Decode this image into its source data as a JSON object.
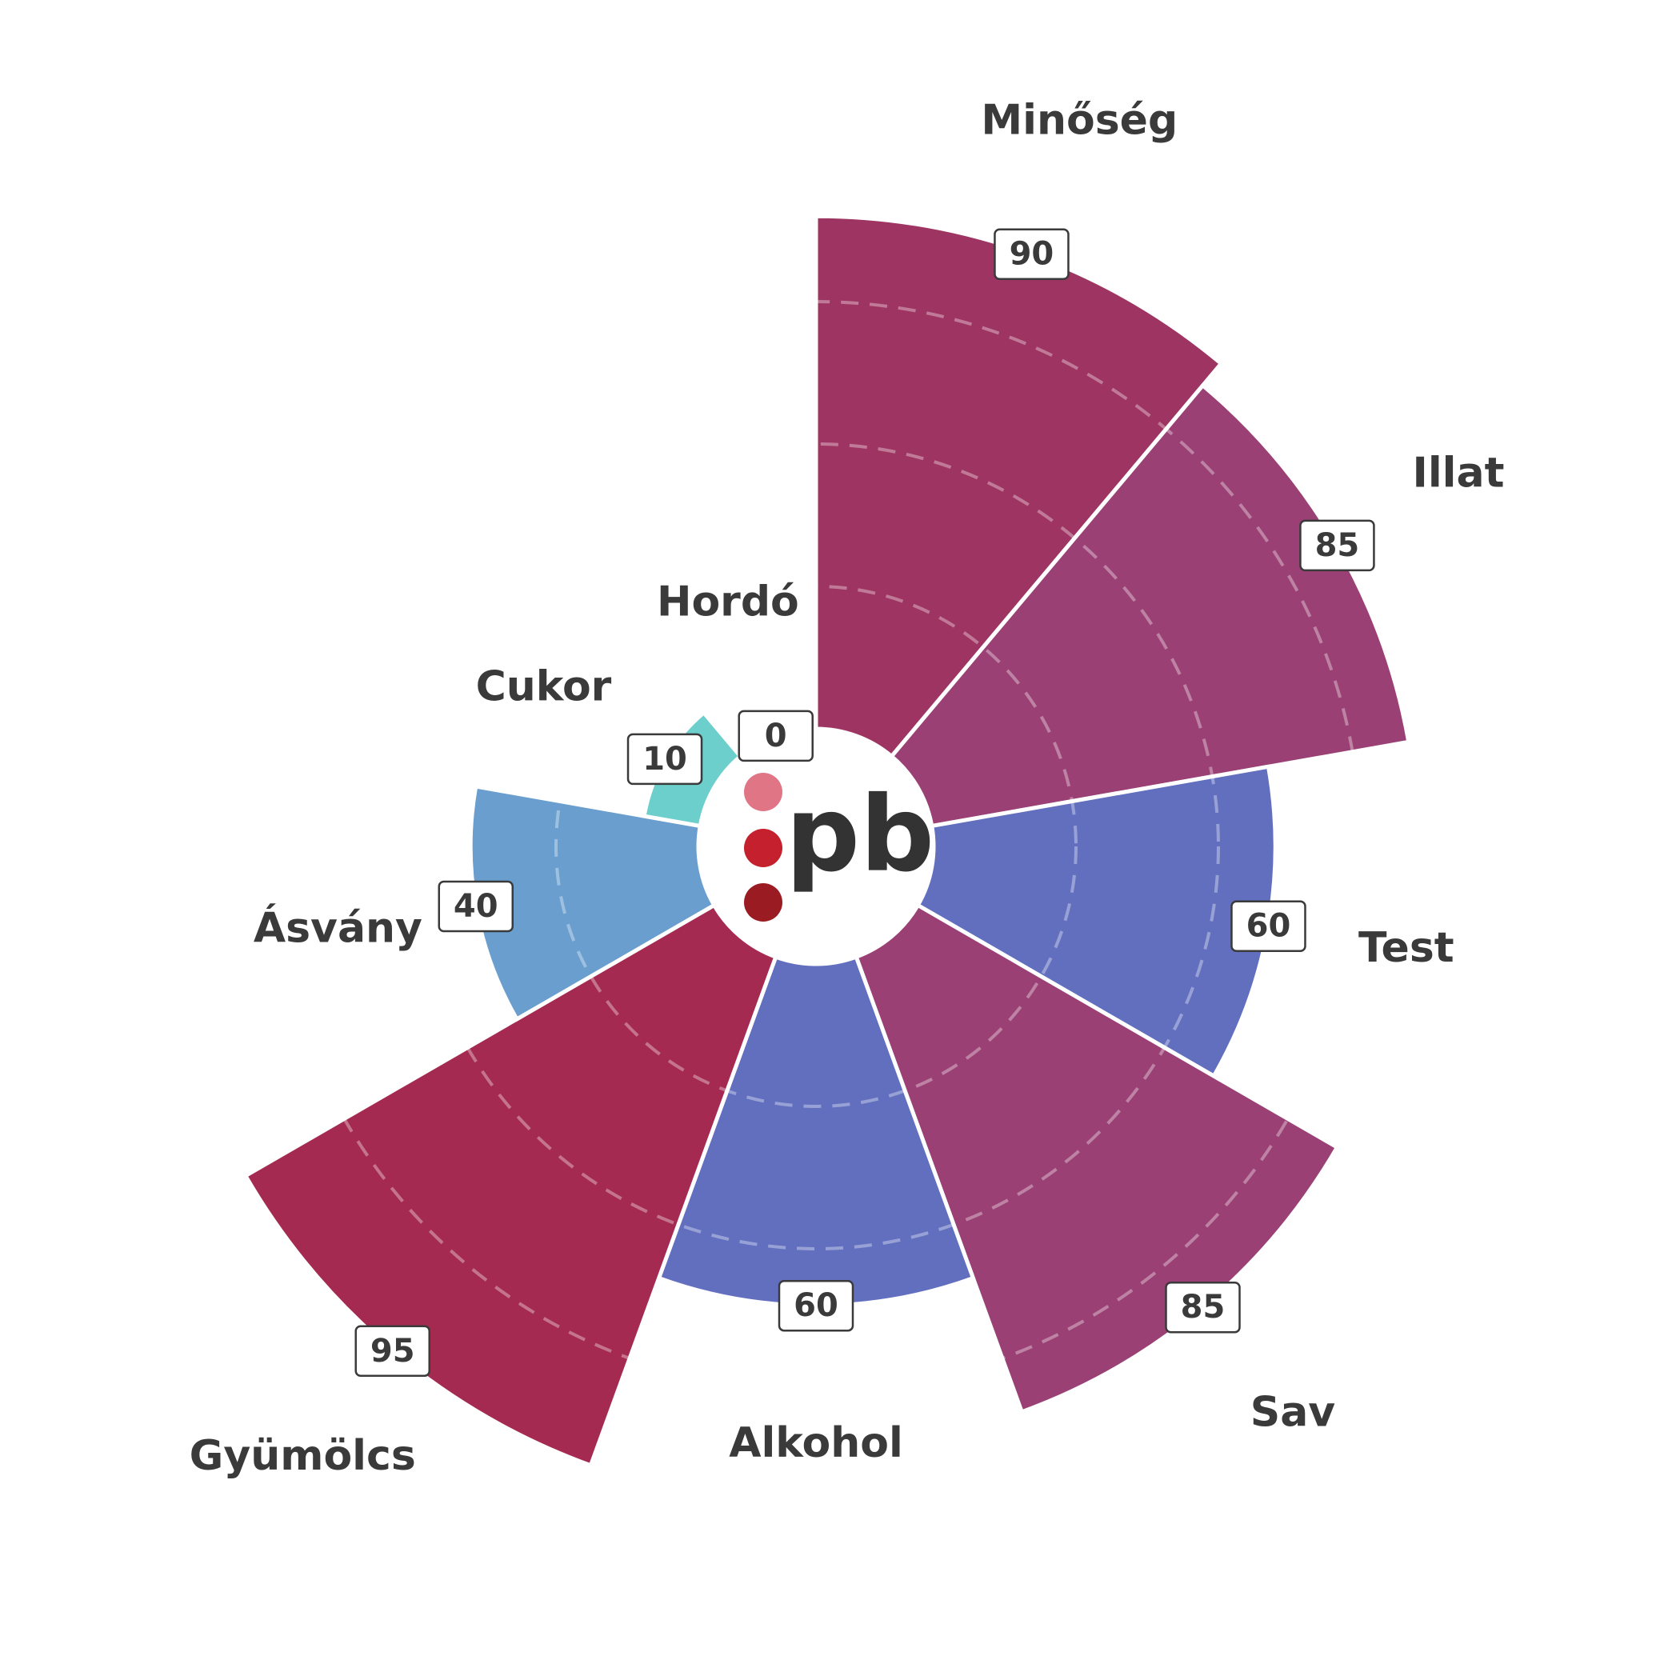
{
  "chart_data": {
    "type": "polar-area",
    "center_text": "pb",
    "categories": [
      "Minőség",
      "Illat",
      "Test",
      "Sav",
      "Alkohol",
      "Gyümölcs",
      "Ásvány",
      "Cukor",
      "Hordó"
    ],
    "values": [
      90,
      85,
      60,
      85,
      60,
      95,
      40,
      10,
      0
    ],
    "colors": [
      "#9e3462",
      "#9a4074",
      "#626fbf",
      "#9a4074",
      "#626fbf",
      "#a52a52",
      "#6a9ecf",
      "#6dcfcc",
      "#c44a6a"
    ],
    "ylim": [
      0,
      100
    ],
    "yticks": [
      25,
      50,
      75,
      100
    ],
    "grid": true
  }
}
